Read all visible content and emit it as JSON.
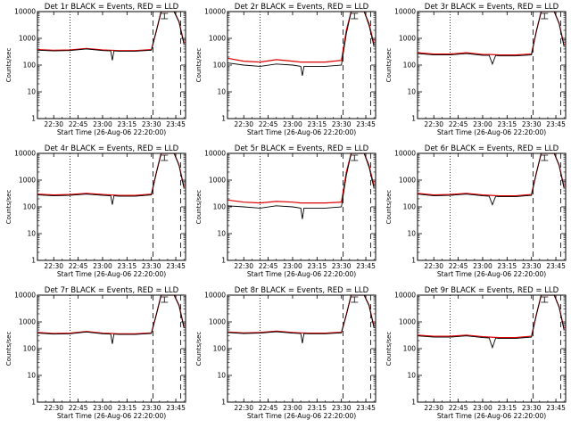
{
  "chart_data": [
    {
      "type": "line",
      "title": "Det 1r BLACK = Events, RED = LLD",
      "xlabel": "Start Time (26-Aug-06 22:20:00)",
      "ylabel": "Counts/sec",
      "yscale": "log",
      "ylim": [
        1,
        10000
      ],
      "x_tick_labels": [
        "22:30",
        "22:45",
        "23:00",
        "23:15",
        "23:30",
        "23:45"
      ],
      "y_tick_labels": [
        "1",
        "10",
        "100",
        "1000",
        "10000"
      ],
      "series": [
        {
          "color": "#000000",
          "x": [
            "22:20",
            "22:30",
            "22:40",
            "22:50",
            "23:00",
            "23:05",
            "23:06",
            "23:07",
            "23:10",
            "23:20",
            "23:30",
            "23:33",
            "23:36",
            "23:38",
            "23:41",
            "23:44",
            "23:47",
            "23:50"
          ],
          "y": [
            360,
            340,
            350,
            400,
            350,
            340,
            150,
            340,
            330,
            330,
            360,
            1800,
            10000,
            10000,
            10000,
            10000,
            4000,
            600
          ]
        },
        {
          "color": "#dd0000",
          "x": [
            "22:20",
            "22:30",
            "22:40",
            "22:50",
            "23:00",
            "23:05",
            "23:10",
            "23:20",
            "23:30",
            "23:33",
            "23:36",
            "23:38",
            "23:41",
            "23:44",
            "23:47",
            "23:50"
          ],
          "y": [
            380,
            360,
            370,
            420,
            370,
            360,
            350,
            350,
            380,
            1900,
            10000,
            10000,
            10000,
            10000,
            4200,
            650
          ]
        }
      ]
    },
    {
      "type": "line",
      "title": "Det 2r BLACK = Events, RED = LLD",
      "xlabel": "Start Time (26-Aug-06 22:20:00)",
      "ylabel": "Counts/sec",
      "yscale": "log",
      "ylim": [
        1,
        10000
      ],
      "x_tick_labels": [
        "22:30",
        "22:45",
        "23:00",
        "23:15",
        "23:30",
        "23:45"
      ],
      "y_tick_labels": [
        "1",
        "10",
        "100",
        "1000",
        "10000"
      ],
      "series": [
        {
          "color": "#000000",
          "x": [
            "22:20",
            "22:30",
            "22:40",
            "22:50",
            "23:00",
            "23:05",
            "23:06",
            "23:07",
            "23:10",
            "23:20",
            "23:30",
            "23:33",
            "23:36",
            "23:38",
            "23:41",
            "23:44",
            "23:47",
            "23:50"
          ],
          "y": [
            120,
            100,
            90,
            110,
            100,
            90,
            40,
            90,
            90,
            90,
            100,
            1500,
            10000,
            10000,
            10000,
            10000,
            3000,
            500
          ]
        },
        {
          "color": "#dd0000",
          "x": [
            "22:20",
            "22:30",
            "22:40",
            "22:50",
            "23:00",
            "23:05",
            "23:10",
            "23:20",
            "23:30",
            "23:33",
            "23:36",
            "23:38",
            "23:41",
            "23:44",
            "23:47",
            "23:50"
          ],
          "y": [
            180,
            140,
            130,
            160,
            140,
            130,
            130,
            130,
            150,
            2000,
            10000,
            10000,
            10000,
            10000,
            3500,
            600
          ]
        }
      ]
    },
    {
      "type": "line",
      "title": "Det 3r BLACK = Events, RED = LLD",
      "xlabel": "Start Time (26-Aug-06 22:20:00)",
      "ylabel": "Counts/sec",
      "yscale": "log",
      "ylim": [
        1,
        10000
      ],
      "x_tick_labels": [
        "22:30",
        "22:45",
        "23:00",
        "23:15",
        "23:30",
        "23:45"
      ],
      "y_tick_labels": [
        "1",
        "10",
        "100",
        "1000",
        "10000"
      ],
      "series": [
        {
          "color": "#000000",
          "x": [
            "22:20",
            "22:30",
            "22:40",
            "22:50",
            "23:00",
            "23:04",
            "23:06",
            "23:08",
            "23:10",
            "23:20",
            "23:30",
            "23:33",
            "23:36",
            "23:38",
            "23:41",
            "23:44",
            "23:47",
            "23:50"
          ],
          "y": [
            270,
            240,
            240,
            270,
            230,
            230,
            110,
            230,
            220,
            220,
            240,
            1800,
            10000,
            10000,
            10000,
            10000,
            3500,
            500
          ]
        },
        {
          "color": "#dd0000",
          "x": [
            "22:20",
            "22:30",
            "22:40",
            "22:50",
            "23:00",
            "23:05",
            "23:10",
            "23:20",
            "23:30",
            "23:33",
            "23:36",
            "23:38",
            "23:41",
            "23:44",
            "23:47",
            "23:50"
          ],
          "y": [
            290,
            260,
            260,
            290,
            250,
            250,
            240,
            240,
            260,
            1900,
            10000,
            10000,
            10000,
            10000,
            3700,
            550
          ]
        }
      ]
    },
    {
      "type": "line",
      "title": "Det 4r BLACK = Events, RED = LLD",
      "xlabel": "Start Time (26-Aug-06 22:20:00)",
      "ylabel": "Counts/sec",
      "yscale": "log",
      "ylim": [
        1,
        10000
      ],
      "x_tick_labels": [
        "22:30",
        "22:45",
        "23:00",
        "23:15",
        "23:30",
        "23:45"
      ],
      "y_tick_labels": [
        "1",
        "10",
        "100",
        "1000",
        "10000"
      ],
      "series": [
        {
          "color": "#000000",
          "x": [
            "22:20",
            "22:30",
            "22:40",
            "22:50",
            "23:00",
            "23:05",
            "23:06",
            "23:07",
            "23:10",
            "23:20",
            "23:30",
            "23:33",
            "23:36",
            "23:38",
            "23:41",
            "23:44",
            "23:47",
            "23:50"
          ],
          "y": [
            280,
            260,
            270,
            300,
            270,
            260,
            120,
            260,
            250,
            250,
            280,
            1800,
            10000,
            10000,
            10000,
            10000,
            3500,
            500
          ]
        },
        {
          "color": "#dd0000",
          "x": [
            "22:20",
            "22:30",
            "22:40",
            "22:50",
            "23:00",
            "23:05",
            "23:10",
            "23:20",
            "23:30",
            "23:33",
            "23:36",
            "23:38",
            "23:41",
            "23:44",
            "23:47",
            "23:50"
          ],
          "y": [
            300,
            280,
            290,
            320,
            290,
            280,
            270,
            270,
            300,
            1900,
            10000,
            10000,
            10000,
            10000,
            3700,
            550
          ]
        }
      ]
    },
    {
      "type": "line",
      "title": "Det 5r BLACK = Events, RED = LLD",
      "xlabel": "Start Time (26-Aug-06 22:20:00)",
      "ylabel": "Counts/sec",
      "yscale": "log",
      "ylim": [
        1,
        10000
      ],
      "x_tick_labels": [
        "22:30",
        "22:45",
        "23:00",
        "23:15",
        "23:30",
        "23:45"
      ],
      "y_tick_labels": [
        "1",
        "10",
        "100",
        "1000",
        "10000"
      ],
      "series": [
        {
          "color": "#000000",
          "x": [
            "22:20",
            "22:30",
            "22:40",
            "22:50",
            "23:00",
            "23:05",
            "23:06",
            "23:07",
            "23:10",
            "23:20",
            "23:30",
            "23:33",
            "23:36",
            "23:38",
            "23:41",
            "23:44",
            "23:47",
            "23:50"
          ],
          "y": [
            110,
            100,
            90,
            110,
            100,
            90,
            35,
            90,
            90,
            90,
            100,
            1500,
            10000,
            10000,
            10000,
            10000,
            3000,
            500
          ]
        },
        {
          "color": "#dd0000",
          "x": [
            "22:20",
            "22:30",
            "22:40",
            "22:50",
            "23:00",
            "23:05",
            "23:10",
            "23:20",
            "23:30",
            "23:33",
            "23:36",
            "23:38",
            "23:41",
            "23:44",
            "23:47",
            "23:50"
          ],
          "y": [
            180,
            150,
            140,
            160,
            150,
            140,
            140,
            140,
            150,
            2000,
            10000,
            10000,
            10000,
            10000,
            3500,
            600
          ]
        }
      ]
    },
    {
      "type": "line",
      "title": "Det 6r BLACK = Events, RED = LLD",
      "xlabel": "Start Time (26-Aug-06 22:20:00)",
      "ylabel": "Counts/sec",
      "yscale": "log",
      "ylim": [
        1,
        10000
      ],
      "x_tick_labels": [
        "22:30",
        "22:45",
        "23:00",
        "23:15",
        "23:30",
        "23:45"
      ],
      "y_tick_labels": [
        "1",
        "10",
        "100",
        "1000",
        "10000"
      ],
      "series": [
        {
          "color": "#000000",
          "x": [
            "22:20",
            "22:30",
            "22:40",
            "22:50",
            "23:00",
            "23:04",
            "23:06",
            "23:08",
            "23:10",
            "23:20",
            "23:30",
            "23:33",
            "23:36",
            "23:38",
            "23:41",
            "23:44",
            "23:47",
            "23:50"
          ],
          "y": [
            300,
            260,
            270,
            300,
            260,
            250,
            120,
            250,
            240,
            240,
            270,
            1800,
            10000,
            10000,
            10000,
            10000,
            3500,
            500
          ]
        },
        {
          "color": "#dd0000",
          "x": [
            "22:20",
            "22:30",
            "22:40",
            "22:50",
            "23:00",
            "23:05",
            "23:10",
            "23:20",
            "23:30",
            "23:33",
            "23:36",
            "23:38",
            "23:41",
            "23:44",
            "23:47",
            "23:50"
          ],
          "y": [
            320,
            280,
            290,
            320,
            280,
            270,
            260,
            260,
            290,
            1900,
            10000,
            10000,
            10000,
            10000,
            3700,
            550
          ]
        }
      ]
    },
    {
      "type": "line",
      "title": "Det 7r BLACK = Events, RED = LLD",
      "xlabel": "Start Time (26-Aug-06 22:20:00)",
      "ylabel": "Counts/sec",
      "yscale": "log",
      "ylim": [
        1,
        10000
      ],
      "x_tick_labels": [
        "22:30",
        "22:45",
        "23:00",
        "23:15",
        "23:30",
        "23:45"
      ],
      "y_tick_labels": [
        "1",
        "10",
        "100",
        "1000",
        "10000"
      ],
      "series": [
        {
          "color": "#000000",
          "x": [
            "22:20",
            "22:30",
            "22:40",
            "22:50",
            "23:00",
            "23:05",
            "23:06",
            "23:07",
            "23:10",
            "23:20",
            "23:30",
            "23:33",
            "23:36",
            "23:38",
            "23:41",
            "23:44",
            "23:47",
            "23:50"
          ],
          "y": [
            380,
            350,
            360,
            420,
            360,
            350,
            150,
            350,
            340,
            340,
            370,
            1800,
            10000,
            10000,
            10000,
            10000,
            4000,
            600
          ]
        },
        {
          "color": "#dd0000",
          "x": [
            "22:20",
            "22:30",
            "22:40",
            "22:50",
            "23:00",
            "23:05",
            "23:10",
            "23:20",
            "23:30",
            "23:33",
            "23:36",
            "23:38",
            "23:41",
            "23:44",
            "23:47",
            "23:50"
          ],
          "y": [
            400,
            370,
            380,
            440,
            380,
            370,
            360,
            360,
            390,
            1900,
            10000,
            10000,
            10000,
            10000,
            4200,
            650
          ]
        }
      ]
    },
    {
      "type": "line",
      "title": "Det 8r BLACK = Events, RED = LLD",
      "xlabel": "Start Time (26-Aug-06 22:20:00)",
      "ylabel": "Counts/sec",
      "yscale": "log",
      "ylim": [
        1,
        10000
      ],
      "x_tick_labels": [
        "22:30",
        "22:45",
        "23:00",
        "23:15",
        "23:30",
        "23:45"
      ],
      "y_tick_labels": [
        "1",
        "10",
        "100",
        "1000",
        "10000"
      ],
      "series": [
        {
          "color": "#000000",
          "x": [
            "22:20",
            "22:30",
            "22:40",
            "22:50",
            "23:00",
            "23:05",
            "23:06",
            "23:07",
            "23:10",
            "23:20",
            "23:30",
            "23:33",
            "23:36",
            "23:38",
            "23:41",
            "23:44",
            "23:47",
            "23:50"
          ],
          "y": [
            400,
            370,
            380,
            430,
            380,
            370,
            160,
            370,
            360,
            360,
            390,
            1800,
            10000,
            10000,
            10000,
            10000,
            4000,
            600
          ]
        },
        {
          "color": "#dd0000",
          "x": [
            "22:20",
            "22:30",
            "22:40",
            "22:50",
            "23:00",
            "23:05",
            "23:10",
            "23:20",
            "23:30",
            "23:33",
            "23:36",
            "23:38",
            "23:41",
            "23:44",
            "23:47",
            "23:50"
          ],
          "y": [
            420,
            390,
            400,
            450,
            400,
            390,
            380,
            380,
            410,
            1900,
            10000,
            10000,
            10000,
            10000,
            4200,
            650
          ]
        }
      ]
    },
    {
      "type": "line",
      "title": "Det 9r BLACK = Events, RED = LLD",
      "xlabel": "Start Time (26-Aug-06 22:20:00)",
      "ylabel": "Counts/sec",
      "yscale": "log",
      "ylim": [
        1,
        10000
      ],
      "x_tick_labels": [
        "22:30",
        "22:45",
        "23:00",
        "23:15",
        "23:30",
        "23:45"
      ],
      "y_tick_labels": [
        "1",
        "10",
        "100",
        "1000",
        "10000"
      ],
      "series": [
        {
          "color": "#000000",
          "x": [
            "22:20",
            "22:30",
            "22:40",
            "22:50",
            "23:00",
            "23:04",
            "23:06",
            "23:08",
            "23:10",
            "23:20",
            "23:30",
            "23:33",
            "23:36",
            "23:38",
            "23:41",
            "23:44",
            "23:47",
            "23:50"
          ],
          "y": [
            300,
            270,
            270,
            300,
            260,
            250,
            110,
            250,
            240,
            240,
            270,
            1800,
            10000,
            10000,
            10000,
            10000,
            3500,
            500
          ]
        },
        {
          "color": "#dd0000",
          "x": [
            "22:20",
            "22:30",
            "22:40",
            "22:50",
            "23:00",
            "23:05",
            "23:10",
            "23:20",
            "23:30",
            "23:33",
            "23:36",
            "23:38",
            "23:41",
            "23:44",
            "23:47",
            "23:50"
          ],
          "y": [
            320,
            290,
            290,
            320,
            280,
            270,
            260,
            260,
            290,
            1900,
            10000,
            10000,
            10000,
            10000,
            3700,
            550
          ]
        }
      ]
    }
  ]
}
